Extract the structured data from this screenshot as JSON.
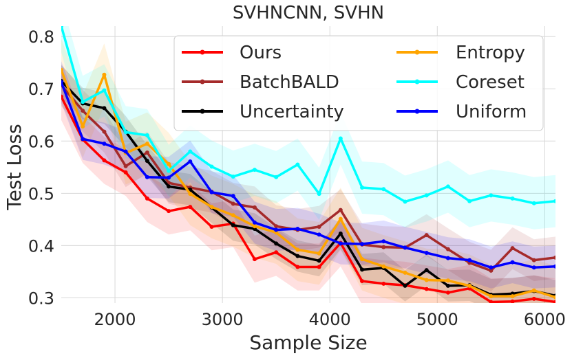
{
  "chart_data": {
    "type": "line",
    "title": "SVHNCNN, SVHN",
    "xlabel": "Sample Size",
    "ylabel": "Test Loss",
    "xlim": [
      1500,
      6100
    ],
    "ylim": [
      0.29,
      0.82
    ],
    "x_ticks": [
      2000,
      3000,
      4000,
      5000,
      6000
    ],
    "x_tick_labels": [
      "2000",
      "3000",
      "4000",
      "5000",
      "6000"
    ],
    "y_ticks": [
      0.3,
      0.4,
      0.5,
      0.6,
      0.7,
      0.8
    ],
    "y_tick_labels": [
      "0.3",
      "0.4",
      "0.5",
      "0.6",
      "0.7",
      "0.8"
    ],
    "grid": true,
    "legend_position": "top-right",
    "x": [
      1500,
      1700,
      1900,
      2100,
      2300,
      2500,
      2700,
      2900,
      3100,
      3300,
      3500,
      3700,
      3900,
      4100,
      4300,
      4500,
      4700,
      4900,
      5100,
      5300,
      5500,
      5700,
      5900,
      6100
    ],
    "series": [
      {
        "name": "Ours",
        "color": "#ff0000",
        "band": 0.045,
        "values": [
          0.685,
          0.603,
          0.563,
          0.54,
          0.49,
          0.466,
          0.474,
          0.436,
          0.442,
          0.374,
          0.387,
          0.359,
          0.359,
          0.405,
          0.332,
          0.327,
          0.324,
          0.317,
          0.31,
          0.318,
          0.292,
          0.293,
          0.298,
          0.292
        ]
      },
      {
        "name": "BatchBALD",
        "color": "#a52a2a",
        "band": 0.04,
        "values": [
          0.707,
          0.658,
          0.618,
          0.552,
          0.578,
          0.52,
          0.511,
          0.503,
          0.48,
          0.473,
          0.437,
          0.43,
          0.436,
          0.468,
          0.402,
          0.397,
          0.396,
          0.42,
          0.393,
          0.367,
          0.352,
          0.395,
          0.372,
          0.377
        ]
      },
      {
        "name": "Uncertainty",
        "color": "#000000",
        "band": 0.03,
        "values": [
          0.715,
          0.672,
          0.663,
          0.618,
          0.562,
          0.513,
          0.507,
          0.473,
          0.439,
          0.432,
          0.404,
          0.38,
          0.371,
          0.423,
          0.354,
          0.357,
          0.323,
          0.353,
          0.323,
          0.324,
          0.306,
          0.308,
          0.313,
          0.304
        ]
      },
      {
        "name": "Entropy",
        "color": "#ffa500",
        "band": 0.06,
        "values": [
          0.736,
          0.628,
          0.727,
          0.577,
          0.595,
          0.556,
          0.499,
          0.474,
          0.458,
          0.437,
          0.425,
          0.392,
          0.385,
          0.451,
          0.374,
          0.36,
          0.348,
          0.334,
          0.333,
          0.323,
          0.303,
          0.303,
          0.314,
          0.301
        ]
      },
      {
        "name": "Coreset",
        "color": "#00ffff",
        "band": 0.05,
        "values": [
          0.82,
          0.675,
          0.697,
          0.617,
          0.611,
          0.543,
          0.58,
          0.551,
          0.532,
          0.545,
          0.531,
          0.555,
          0.499,
          0.605,
          0.511,
          0.508,
          0.484,
          0.496,
          0.513,
          0.485,
          0.496,
          0.49,
          0.481,
          0.485
        ]
      },
      {
        "name": "Uniform",
        "color": "#0000ff",
        "band": 0.04,
        "values": [
          0.713,
          0.604,
          0.595,
          0.58,
          0.531,
          0.53,
          0.561,
          0.502,
          0.495,
          0.444,
          0.43,
          0.432,
          0.421,
          0.404,
          0.403,
          0.408,
          0.396,
          0.386,
          0.376,
          0.372,
          0.358,
          0.368,
          0.358,
          0.36
        ]
      }
    ]
  }
}
